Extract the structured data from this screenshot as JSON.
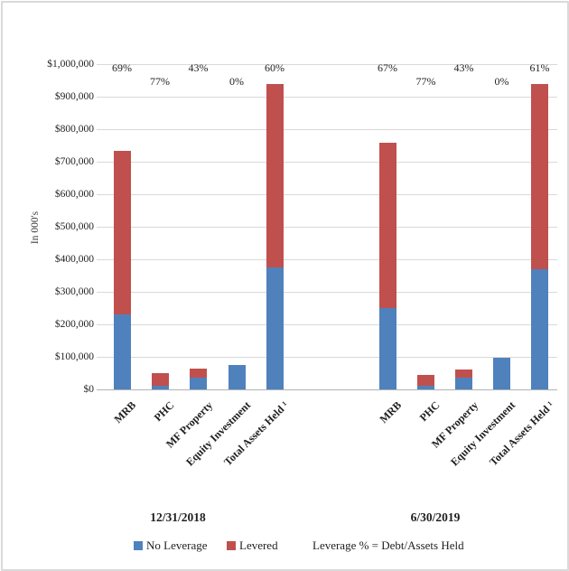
{
  "chart": {
    "y_axis_title": "In 000's",
    "y_tick_labels": [
      "$0",
      "$100,000",
      "$200,000",
      "$300,000",
      "$400,000",
      "$500,000",
      "$600,000",
      "$700,000",
      "$800,000",
      "$900,000",
      "$1,000,000"
    ],
    "legend": {
      "items": [
        {
          "label": "No Leverage",
          "color": "#4F81BD"
        },
        {
          "label": "Levered",
          "color": "#C0504D"
        }
      ],
      "note": "Leverage % = Debt/Assets Held"
    }
  },
  "colors": {
    "no_leverage": "#4F81BD",
    "levered": "#C0504D",
    "gridline": "#D9D9D9",
    "axis_line": "#B3B3B3",
    "text": "#1F1F1F"
  },
  "chart_data": {
    "type": "bar",
    "stacked": true,
    "title": "",
    "xlabel": "",
    "ylabel": "In 000's",
    "ylim": [
      0,
      1000000
    ],
    "ytick_step": 100000,
    "grid": "horizontal",
    "legend_position": "bottom",
    "series_names": [
      "No Leverage",
      "Levered"
    ],
    "annotation": "Leverage % = Debt/Assets Held",
    "groups": [
      {
        "label": "12/31/2018",
        "categories": [
          "MRB",
          "PHC",
          "MF Property",
          "Equity Investment",
          "Total Assets Held ¹"
        ],
        "series": [
          {
            "name": "No Leverage",
            "values": [
              230000,
              11000,
              37000,
              76000,
              376000
            ]
          },
          {
            "name": "Levered",
            "values": [
              503000,
              38000,
              28000,
              0,
              564000
            ]
          }
        ],
        "totals": [
          733000,
          49000,
          65000,
          76000,
          940000
        ],
        "leverage_pct_labels": [
          "69%",
          "77%",
          "43%",
          "0%",
          "60%"
        ]
      },
      {
        "label": "6/30/2019",
        "categories": [
          "MRB",
          "PHC",
          "MF Property",
          "Equity Investment",
          "Total Assets Held ¹"
        ],
        "series": [
          {
            "name": "No Leverage",
            "values": [
              249000,
              10000,
              35000,
              98000,
              370000
            ]
          },
          {
            "name": "Levered",
            "values": [
              508000,
              34000,
              26000,
              0,
              570000
            ]
          }
        ],
        "totals": [
          757000,
          44000,
          61000,
          98000,
          940000
        ],
        "leverage_pct_labels": [
          "67%",
          "77%",
          "43%",
          "0%",
          "61%"
        ]
      }
    ]
  }
}
